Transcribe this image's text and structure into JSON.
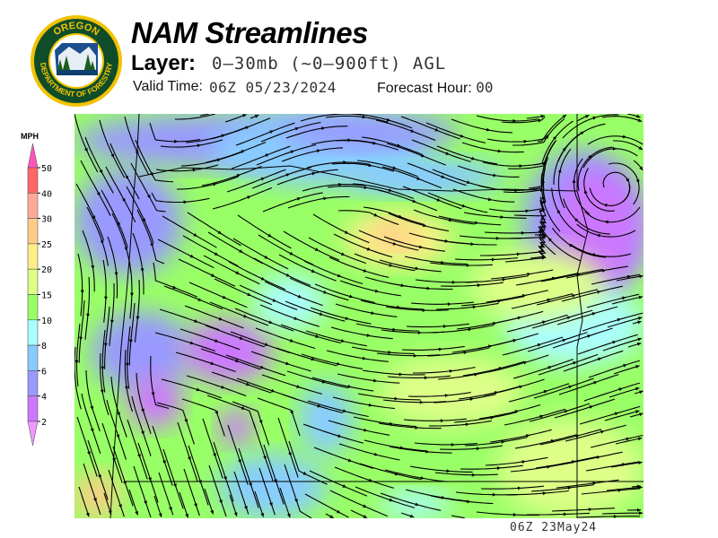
{
  "logo": {
    "top_text": "OREGON",
    "ring_text": "DEPARTMENT OF FORESTRY"
  },
  "header": {
    "title": "NAM Streamlines",
    "layer_label": "Layer:",
    "layer_value": "0–30mb (~0–900ft) AGL",
    "valid_time_label": "Valid Time:",
    "valid_time_value": "06Z 05/23/2024",
    "forecast_hour_label": "Forecast Hour:",
    "forecast_hour_value": "00"
  },
  "legend": {
    "unit": "MPH",
    "ticks": [
      "50",
      "40",
      "30",
      "25",
      "20",
      "15",
      "10",
      "8",
      "6",
      "4",
      "2"
    ],
    "colors": [
      "#ff55bb",
      "#ff6666",
      "#ffaa99",
      "#ffcc88",
      "#ffee88",
      "#ddff88",
      "#99ff66",
      "#aaffff",
      "#88ccff",
      "#9999ff",
      "#cc77ff",
      "#ee99ff"
    ]
  },
  "footer": "06Z 23May24"
}
